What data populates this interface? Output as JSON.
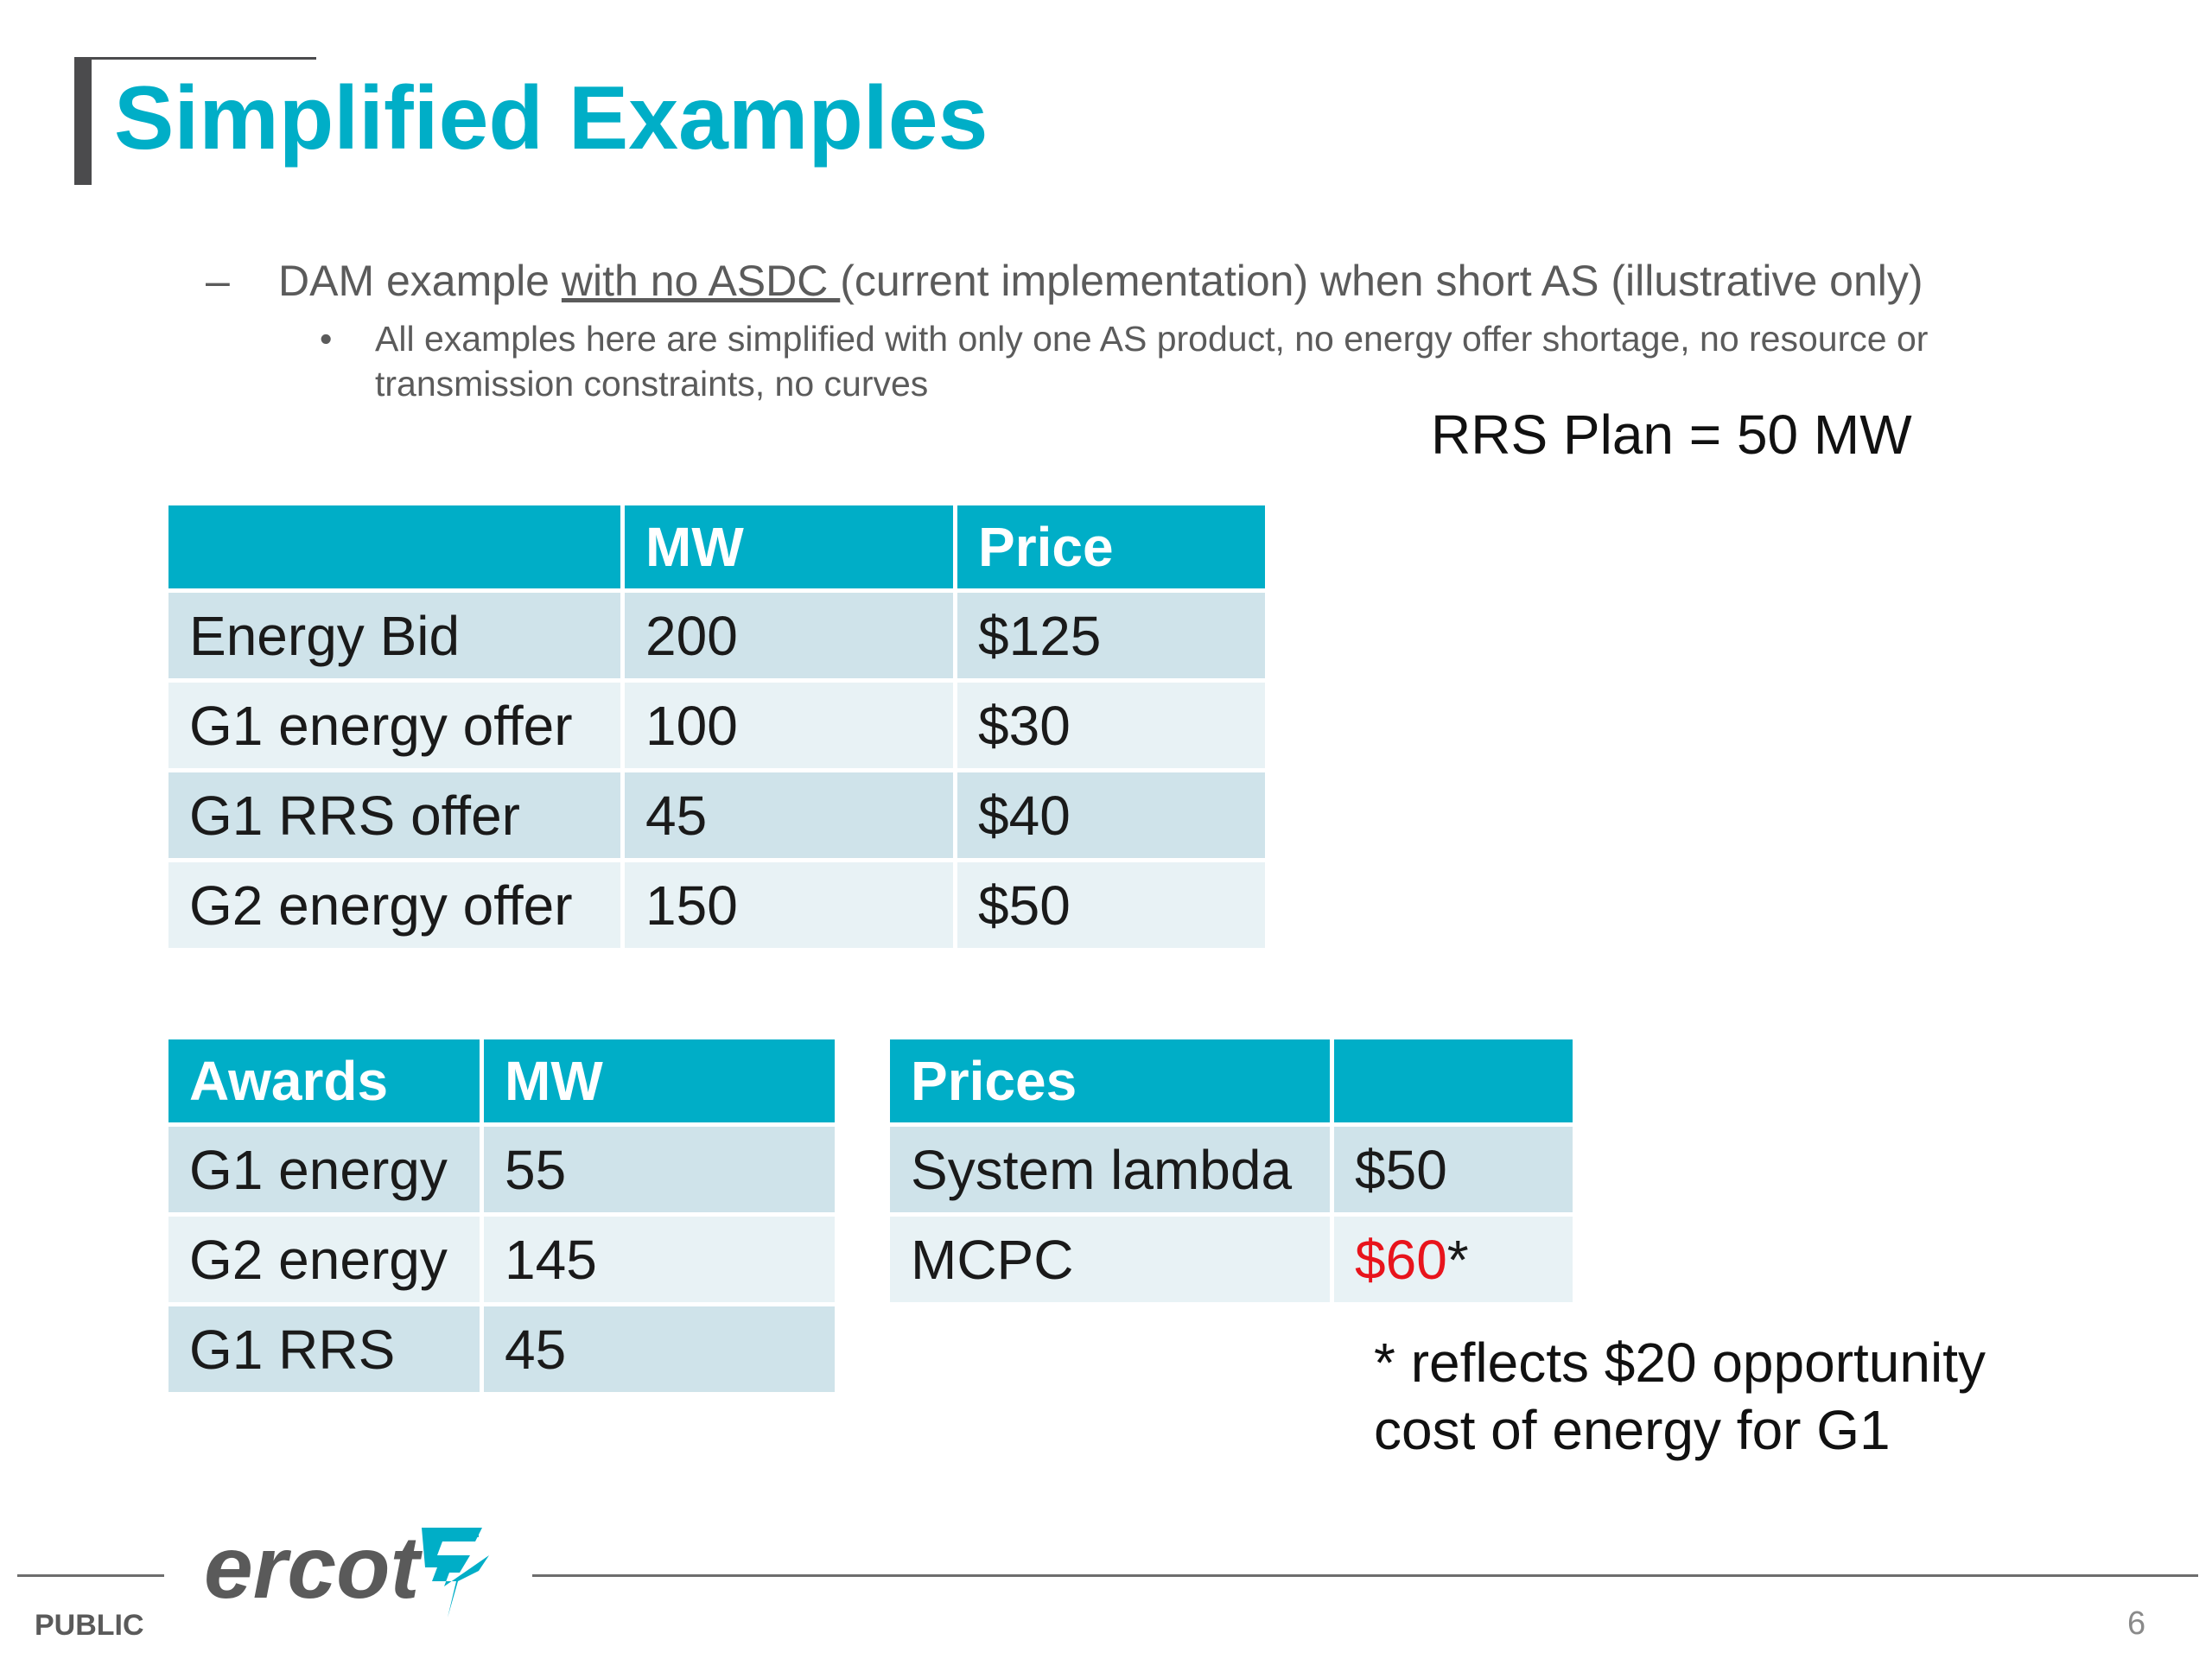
{
  "title": "Simplified Examples",
  "bullets": {
    "main_dash": "–",
    "main_pre": "DAM example ",
    "main_underlined": "with no ASDC ",
    "main_post": "(current implementation) when short AS (illustrative only)",
    "sub_dot": "•",
    "sub_text": "All examples here are simplified with only one AS product, no energy offer shortage, no resource or transmission constraints, no curves"
  },
  "rrs_plan": "RRS Plan = 50 MW",
  "offers_table": {
    "headers": [
      "",
      "MW",
      "Price"
    ],
    "rows": [
      [
        "Energy Bid",
        "200",
        "$125"
      ],
      [
        "G1 energy offer",
        "100",
        "$30"
      ],
      [
        "G1 RRS offer",
        "45",
        "$40"
      ],
      [
        "G2 energy offer",
        "150",
        "$50"
      ]
    ]
  },
  "awards_table": {
    "headers": [
      "Awards",
      "MW"
    ],
    "rows": [
      [
        "G1 energy",
        "55"
      ],
      [
        "G2 energy",
        "145"
      ],
      [
        "G1 RRS",
        "45"
      ]
    ]
  },
  "prices_table": {
    "headers": [
      "Prices",
      ""
    ],
    "rows": [
      [
        "System lambda",
        "$50"
      ],
      [
        "MCPC",
        "$60",
        "*"
      ]
    ]
  },
  "note": {
    "line1": "* reflects $20 opportunity",
    "line2": "cost of energy for G1"
  },
  "footer": {
    "logo_text": "ercot",
    "classification": "PUBLIC",
    "page_number": "6"
  },
  "colors": {
    "accent": "#00aec7",
    "row_dark": "#cfe3ea",
    "row_light": "#e8f2f5",
    "highlight": "#e8141c"
  }
}
